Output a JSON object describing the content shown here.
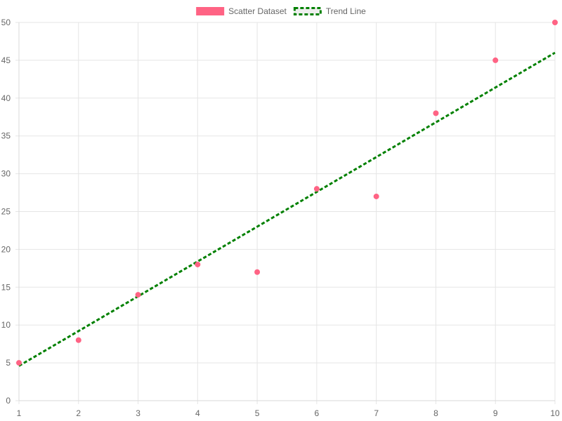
{
  "chart_data": {
    "type": "scatter",
    "title": "",
    "xlabel": "",
    "ylabel": "",
    "xlim": [
      1,
      10
    ],
    "ylim": [
      0,
      50
    ],
    "x_ticks": [
      1,
      2,
      3,
      4,
      5,
      6,
      7,
      8,
      9,
      10
    ],
    "y_ticks": [
      0,
      5,
      10,
      15,
      20,
      25,
      30,
      35,
      40,
      45,
      50
    ],
    "grid": true,
    "legend_position": "top-center",
    "series": [
      {
        "name": "Scatter Dataset",
        "kind": "scatter",
        "color": "#ff6384",
        "points": [
          {
            "x": 1,
            "y": 5
          },
          {
            "x": 2,
            "y": 8
          },
          {
            "x": 3,
            "y": 14
          },
          {
            "x": 4,
            "y": 18
          },
          {
            "x": 5,
            "y": 17
          },
          {
            "x": 6,
            "y": 28
          },
          {
            "x": 7,
            "y": 27
          },
          {
            "x": 8,
            "y": 38
          },
          {
            "x": 9,
            "y": 45
          },
          {
            "x": 10,
            "y": 50
          }
        ]
      },
      {
        "name": "Trend Line",
        "kind": "line",
        "color": "#008000",
        "dashed": true,
        "points": [
          {
            "x": 1,
            "y": 4.6
          },
          {
            "x": 10,
            "y": 46
          }
        ]
      }
    ]
  }
}
